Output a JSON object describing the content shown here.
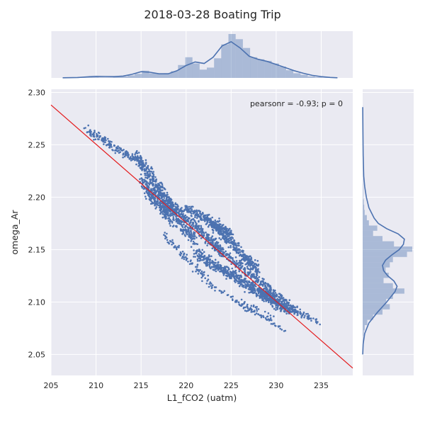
{
  "chart_data": {
    "type": "scatter",
    "title": "2018-03-28 Boating Trip",
    "xlabel": "L1_fCO2 (uatm)",
    "ylabel": "omega_Ar",
    "annotation": "pearsonr = -0.93; p = 0",
    "xlim": [
      205,
      238.5
    ],
    "ylim": [
      2.03,
      2.303
    ],
    "xticks": [
      205,
      210,
      215,
      220,
      225,
      230,
      235
    ],
    "yticks": [
      2.05,
      2.1,
      2.15,
      2.2,
      2.25,
      2.3
    ],
    "xtick_labels": [
      "205",
      "210",
      "215",
      "220",
      "225",
      "230",
      "235"
    ],
    "ytick_labels": [
      "2.05",
      "2.10",
      "2.15",
      "2.20",
      "2.25",
      "2.30"
    ],
    "grid": true,
    "point_color": "#4c72b0",
    "regression_color": "#e41a1c",
    "regression_line": {
      "x": [
        205,
        238.5
      ],
      "y": [
        2.288,
        2.037
      ]
    },
    "scatter_segments": [
      {
        "from": [
          209.0,
          2.264
        ],
        "to": [
          214.5,
          2.235
        ],
        "spread": 0.004,
        "count": 160
      },
      {
        "from": [
          214.5,
          2.238
        ],
        "to": [
          218.5,
          2.19
        ],
        "spread": 0.007,
        "count": 300
      },
      {
        "from": [
          215.0,
          2.215
        ],
        "to": [
          221.0,
          2.16
        ],
        "spread": 0.007,
        "count": 360
      },
      {
        "from": [
          218.0,
          2.195
        ],
        "to": [
          224.0,
          2.148
        ],
        "spread": 0.006,
        "count": 320
      },
      {
        "from": [
          220.0,
          2.19
        ],
        "to": [
          225.0,
          2.165
        ],
        "spread": 0.005,
        "count": 260
      },
      {
        "from": [
          223.0,
          2.175
        ],
        "to": [
          228.0,
          2.13
        ],
        "spread": 0.006,
        "count": 320
      },
      {
        "from": [
          221.0,
          2.148
        ],
        "to": [
          231.0,
          2.095
        ],
        "spread": 0.006,
        "count": 380
      },
      {
        "from": [
          223.0,
          2.155
        ],
        "to": [
          232.5,
          2.09
        ],
        "spread": 0.005,
        "count": 300
      },
      {
        "from": [
          222.0,
          2.14
        ],
        "to": [
          230.0,
          2.1
        ],
        "spread": 0.005,
        "count": 220
      },
      {
        "from": [
          228.0,
          2.11
        ],
        "to": [
          232.0,
          2.09
        ],
        "spread": 0.004,
        "count": 120
      },
      {
        "from": [
          230.0,
          2.1
        ],
        "to": [
          234.7,
          2.081
        ],
        "spread": 0.003,
        "count": 80
      },
      {
        "from": [
          217.5,
          2.165
        ],
        "to": [
          223.0,
          2.115
        ],
        "spread": 0.004,
        "count": 90
      },
      {
        "from": [
          223.0,
          2.115
        ],
        "to": [
          231.0,
          2.072
        ],
        "spread": 0.003,
        "count": 60
      },
      {
        "from": [
          215.5,
          2.205
        ],
        "to": [
          218.5,
          2.175
        ],
        "spread": 0.004,
        "count": 80
      },
      {
        "from": [
          226.0,
          2.1
        ],
        "to": [
          230.0,
          2.082
        ],
        "spread": 0.004,
        "count": 50
      }
    ],
    "x_histogram": {
      "bin_start": 206.3,
      "bin_width": 0.8,
      "counts": [
        0.5,
        1,
        2,
        2,
        1.5,
        1,
        1,
        2,
        3,
        5,
        8,
        14,
        9,
        8,
        9,
        13,
        25,
        40,
        28,
        16,
        20,
        38,
        65,
        85,
        75,
        58,
        40,
        36,
        33,
        28,
        22,
        15,
        9,
        6,
        3,
        1.5,
        0.5
      ]
    },
    "x_kde": {
      "x": [
        206.3,
        208,
        209,
        210,
        211,
        212,
        213,
        214,
        215,
        216,
        217,
        218,
        219,
        220,
        221,
        222,
        223,
        224,
        225,
        226,
        227,
        228,
        229,
        230,
        231,
        232,
        233,
        234,
        235,
        236,
        236.8
      ],
      "y": [
        0.3,
        0.8,
        2,
        3,
        2.8,
        2.4,
        3.5,
        7,
        12,
        11,
        8,
        8,
        14,
        24,
        31,
        28,
        40,
        62,
        70,
        58,
        42,
        36,
        32,
        26,
        20,
        14,
        9,
        5,
        2.5,
        1,
        0.3
      ]
    },
    "y_histogram": {
      "bin_start": 2.058,
      "bin_width": 0.005,
      "counts": [
        0.5,
        1,
        2,
        4,
        9,
        20,
        38,
        52,
        45,
        58,
        80,
        58,
        40,
        50,
        44,
        52,
        58,
        85,
        95,
        60,
        38,
        20,
        28,
        12,
        8,
        4,
        3,
        2,
        1,
        1,
        0.8,
        0.5,
        0.3,
        0.2,
        0.2,
        0.1,
        0.1,
        0.1,
        0.1,
        0.1,
        0.1,
        0.1,
        0.1,
        0.1,
        0.1,
        0.1
      ]
    },
    "y_kde": {
      "y": [
        2.05,
        2.06,
        2.07,
        2.08,
        2.09,
        2.1,
        2.11,
        2.115,
        2.12,
        2.125,
        2.13,
        2.135,
        2.14,
        2.145,
        2.15,
        2.155,
        2.16,
        2.165,
        2.17,
        2.175,
        2.18,
        2.19,
        2.2,
        2.21,
        2.22,
        2.24,
        2.26,
        2.286
      ],
      "v": [
        0.1,
        1,
        4,
        12,
        28,
        46,
        62,
        66,
        60,
        48,
        40,
        38,
        44,
        56,
        70,
        78,
        80,
        68,
        46,
        30,
        22,
        12,
        7,
        4,
        2,
        1,
        0.5,
        0.1
      ]
    }
  }
}
